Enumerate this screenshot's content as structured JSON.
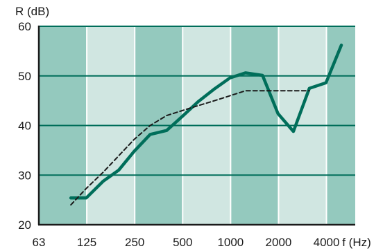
{
  "chart_data": {
    "type": "line",
    "title": "",
    "ylabel": "R (dB)",
    "xlabel": "f (Hz)",
    "ylim": [
      20,
      60
    ],
    "yticks": [
      20,
      30,
      40,
      50,
      60
    ],
    "x_scale": "log (one-third-octave bands)",
    "xticks": [
      "63",
      "125",
      "250",
      "500",
      "1000",
      "2000",
      "4000"
    ],
    "x": [
      100,
      125,
      160,
      200,
      250,
      315,
      400,
      500,
      630,
      800,
      1000,
      1250,
      1600,
      2000,
      2500,
      3150,
      4000,
      5000
    ],
    "series": [
      {
        "style": "solid",
        "color": "#006e5a",
        "values": [
          25.4,
          25.4,
          28.8,
          31.0,
          34.8,
          38.2,
          39.0,
          41.8,
          44.8,
          47.4,
          49.6,
          50.6,
          50.1,
          42.4,
          38.8,
          47.5,
          48.6,
          56.2
        ]
      },
      {
        "style": "dashed",
        "color": "#1a1a1a",
        "values": [
          24.0,
          27.3,
          30.6,
          33.9,
          37.2,
          40.0,
          42.0,
          43.0,
          44.0,
          45.0,
          46.0,
          47.0,
          47.0,
          47.0,
          47.0,
          47.0,
          null,
          null
        ]
      }
    ],
    "grid": true,
    "band_colors": [
      "#94c9be",
      "#d0e6e1"
    ],
    "gridline_color": "#006e5a"
  }
}
